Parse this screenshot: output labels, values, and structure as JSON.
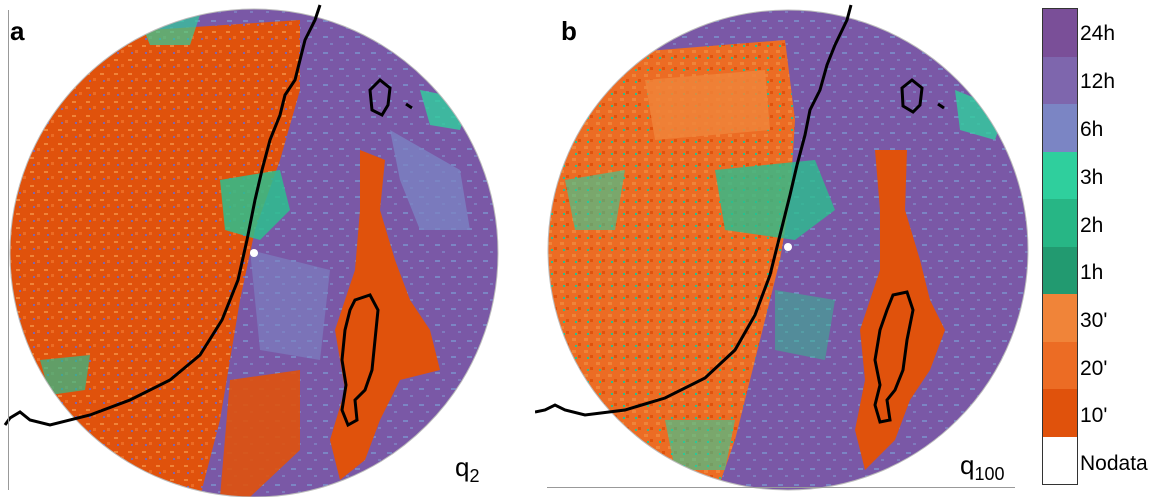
{
  "panels": [
    {
      "letter": "a",
      "q_base": "q",
      "q_sub": "2"
    },
    {
      "letter": "b",
      "q_base": "q",
      "q_sub": "100"
    }
  ],
  "legend": {
    "items": [
      {
        "label": "24h",
        "color": "#7a4f98"
      },
      {
        "label": "12h",
        "color": "#7e66ad"
      },
      {
        "label": "6h",
        "color": "#7b85c4"
      },
      {
        "label": "3h",
        "color": "#2fcf9d"
      },
      {
        "label": "2h",
        "color": "#27b685"
      },
      {
        "label": "1h",
        "color": "#229a70"
      },
      {
        "label": "30'",
        "color": "#f08439"
      },
      {
        "label": "20'",
        "color": "#ec6c24"
      },
      {
        "label": "10'",
        "color": "#e0520c"
      },
      {
        "label": "Nodata",
        "color": "#ffffff"
      }
    ]
  },
  "colors": {
    "orange_dark": "#e0520c",
    "orange_mid": "#ec6c24",
    "orange_light": "#f08439",
    "purple": "#7a58a6",
    "purple_light": "#7e7abd",
    "green": "#2bbf8e",
    "teal": "#2fcf9d",
    "coast": "#000000",
    "radar_dot": "#ffffff"
  }
}
